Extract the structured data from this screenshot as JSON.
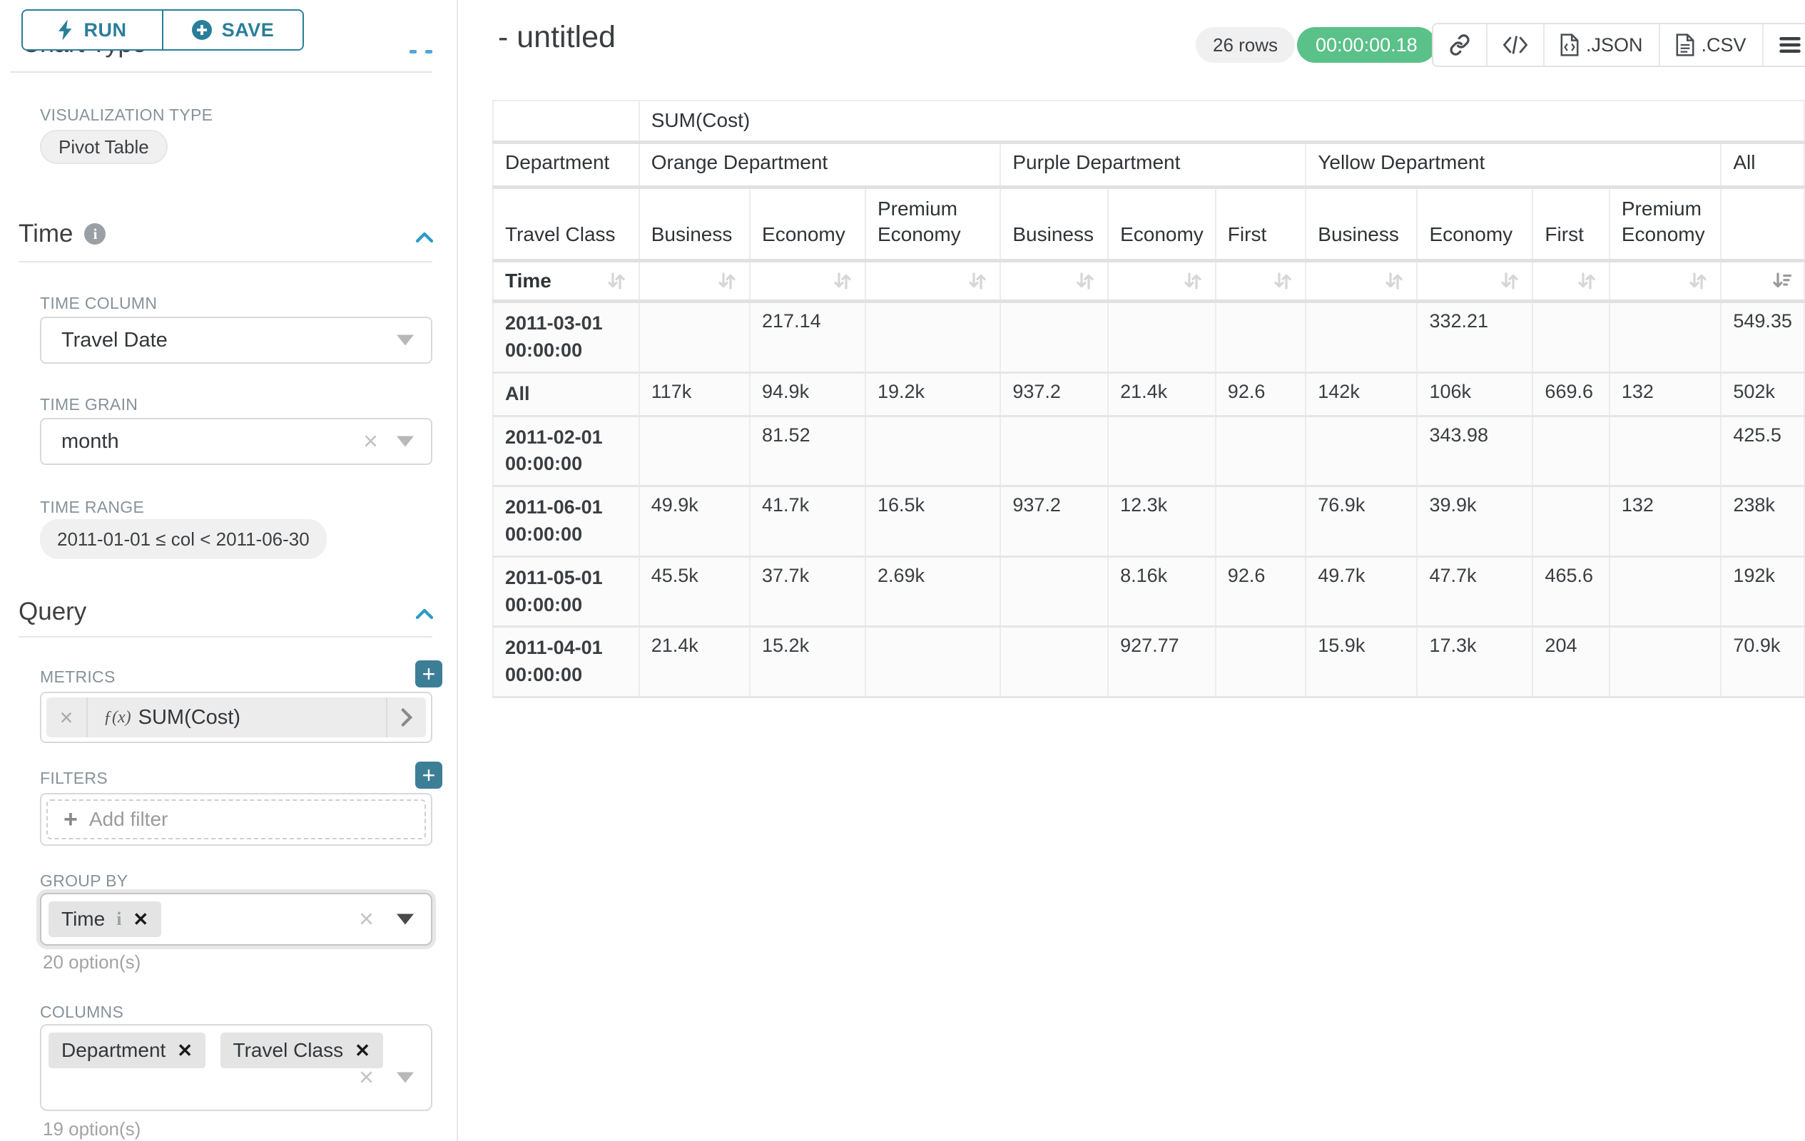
{
  "colors": {
    "accent_teal": "#2a7e9b",
    "plus_button_teal": "#3d7e97",
    "timer_green": "#5ac189",
    "pill_gray": "#f0f0f0",
    "border_gray": "#d9d9d9",
    "table_border": "#ececec"
  },
  "sidebar": {
    "run_label": "RUN",
    "save_label": "SAVE",
    "clipped_heading": "Chart Type",
    "viz_type_label": "VISUALIZATION TYPE",
    "viz_type_value": "Pivot Table",
    "time_section": {
      "title": "Time",
      "time_column_label": "TIME COLUMN",
      "time_column_value": "Travel Date",
      "time_grain_label": "TIME GRAIN",
      "time_grain_value": "month",
      "time_range_label": "TIME RANGE",
      "time_range_value": "2011-01-01 ≤ col < 2011-06-30"
    },
    "query_section": {
      "title": "Query",
      "metrics_label": "METRICS",
      "metric_fx": "ƒ(x)",
      "metric_value": "SUM(Cost)",
      "filters_label": "FILTERS",
      "add_filter_label": "Add filter",
      "group_by_label": "GROUP BY",
      "group_by_tags": [
        "Time"
      ],
      "group_by_hint": "20 option(s)",
      "columns_label": "COLUMNS",
      "columns_tags": [
        "Department",
        "Travel Class"
      ],
      "columns_hint": "19 option(s)"
    }
  },
  "header": {
    "title": "- untitled",
    "row_count_badge": "26 rows",
    "timer_badge": "00:00:00.18",
    "json_label": ".JSON",
    "csv_label": ".CSV"
  },
  "table": {
    "metric_header": "SUM(Cost)",
    "dim_row_label": "Department",
    "dim_col_label": "Travel Class",
    "sort_row_label": "Time",
    "col_groups": [
      {
        "label": "Orange Department",
        "span": 3
      },
      {
        "label": "Purple Department",
        "span": 3
      },
      {
        "label": "Yellow Department",
        "span": 4
      },
      {
        "label": "All",
        "span": 1
      }
    ],
    "sub_columns": [
      "Business",
      "Economy",
      "Premium Economy",
      "Business",
      "Economy",
      "First",
      "Business",
      "Economy",
      "First",
      "Premium Economy",
      ""
    ],
    "rows": [
      {
        "label": "2011-03-01 00:00:00",
        "values": [
          "",
          "217.14",
          "",
          "",
          "",
          "",
          "",
          "332.21",
          "",
          "",
          "549.35"
        ]
      },
      {
        "label": "All",
        "values": [
          "117k",
          "94.9k",
          "19.2k",
          "937.2",
          "21.4k",
          "92.6",
          "142k",
          "106k",
          "669.6",
          "132",
          "502k"
        ]
      },
      {
        "label": "2011-02-01 00:00:00",
        "values": [
          "",
          "81.52",
          "",
          "",
          "",
          "",
          "",
          "343.98",
          "",
          "",
          "425.5"
        ]
      },
      {
        "label": "2011-06-01 00:00:00",
        "values": [
          "49.9k",
          "41.7k",
          "16.5k",
          "937.2",
          "12.3k",
          "",
          "76.9k",
          "39.9k",
          "",
          "132",
          "238k"
        ]
      },
      {
        "label": "2011-05-01 00:00:00",
        "values": [
          "45.5k",
          "37.7k",
          "2.69k",
          "",
          "8.16k",
          "92.6",
          "49.7k",
          "47.7k",
          "465.6",
          "",
          "192k"
        ]
      },
      {
        "label": "2011-04-01 00:00:00",
        "values": [
          "21.4k",
          "15.2k",
          "",
          "",
          "927.77",
          "",
          "15.9k",
          "17.3k",
          "204",
          "",
          "70.9k"
        ]
      }
    ]
  }
}
